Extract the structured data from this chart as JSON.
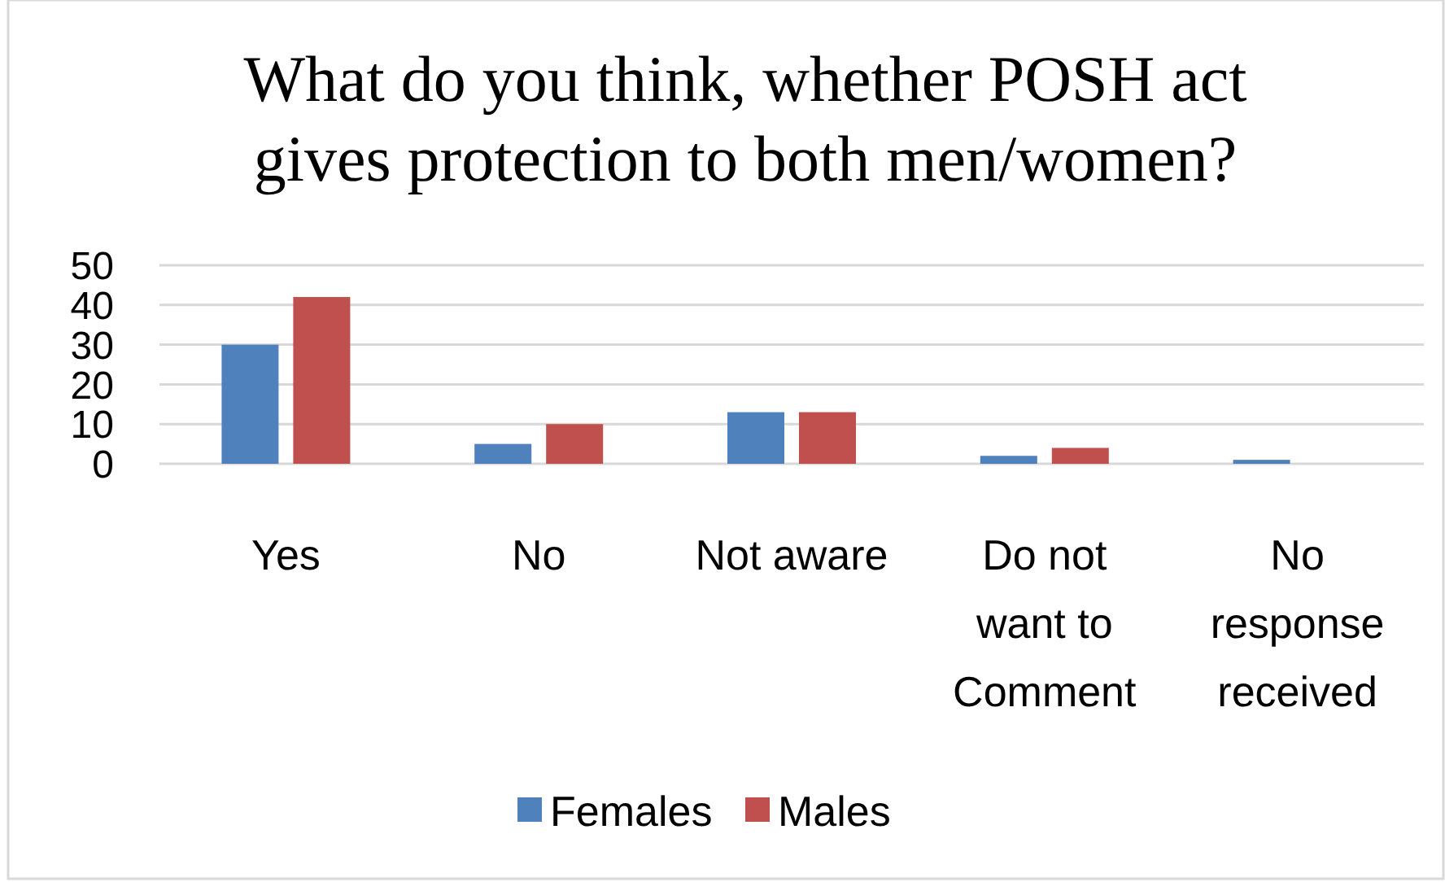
{
  "chart_data": {
    "type": "bar",
    "title": "What do you think, whether POSH act gives protection to both men/women?",
    "categories": [
      "Yes",
      "No",
      "Not aware",
      "Do not want to Comment",
      "No response received"
    ],
    "series": [
      {
        "name": "Females",
        "color": "#4f81bd",
        "values": [
          30,
          5,
          13,
          2,
          1
        ]
      },
      {
        "name": "Males",
        "color": "#c0504d",
        "values": [
          42,
          10,
          13,
          4,
          0
        ]
      }
    ],
    "ylim": [
      0,
      50
    ],
    "yticks": [
      0,
      10,
      20,
      30,
      40,
      50
    ],
    "grid": "y",
    "legend": "bottom"
  }
}
